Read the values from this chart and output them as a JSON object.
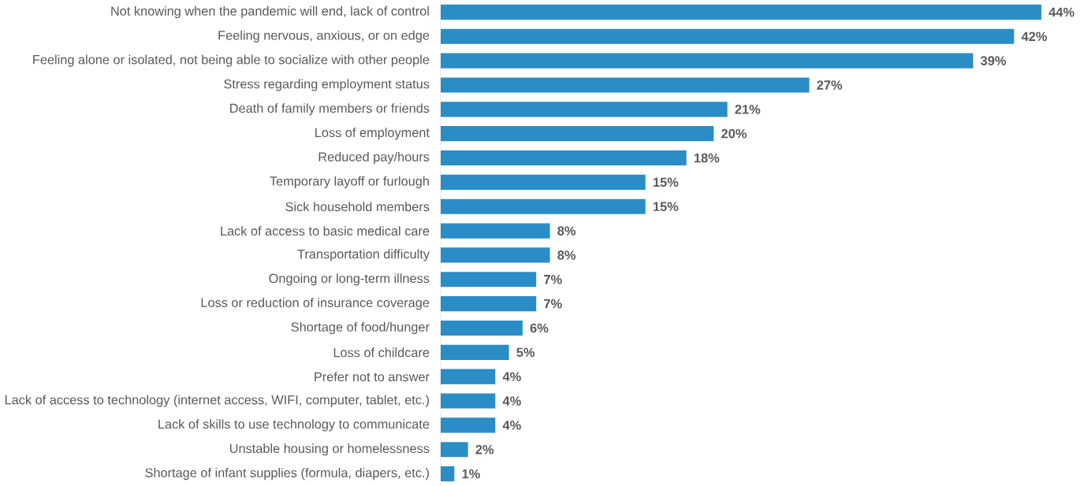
{
  "chart_data": {
    "type": "bar",
    "orientation": "horizontal",
    "color": "#2a8dc5",
    "categories": [
      "Not knowing when the pandemic will end, lack of control",
      "Feeling nervous, anxious, or on edge",
      "Feeling alone or isolated, not being able to socialize with other people",
      "Stress regarding employment status",
      "Death of family members or friends",
      "Loss of employment",
      "Reduced pay/hours",
      "Temporary layoff or furlough",
      "Sick household members",
      "Lack of access to basic medical care",
      "Transportation difficulty",
      "Ongoing or long-term illness",
      "Loss or reduction of insurance coverage",
      "Shortage of food/hunger",
      "Loss of childcare",
      "Prefer not to answer",
      "Lack of access to technology (internet access, WIFI, computer, tablet, etc.)",
      "Lack of skills to use technology to communicate",
      "Unstable housing or homelessness",
      "Shortage of infant supplies (formula, diapers, etc.)"
    ],
    "values": [
      44,
      42,
      39,
      27,
      21,
      20,
      18,
      15,
      15,
      8,
      8,
      7,
      7,
      6,
      5,
      4,
      4,
      4,
      2,
      1
    ],
    "value_labels": [
      "44%",
      "42%",
      "39%",
      "27%",
      "21%",
      "20%",
      "18%",
      "15%",
      "15%",
      "8%",
      "8%",
      "7%",
      "7%",
      "6%",
      "5%",
      "4%",
      "4%",
      "4%",
      "2%",
      "1%"
    ]
  }
}
